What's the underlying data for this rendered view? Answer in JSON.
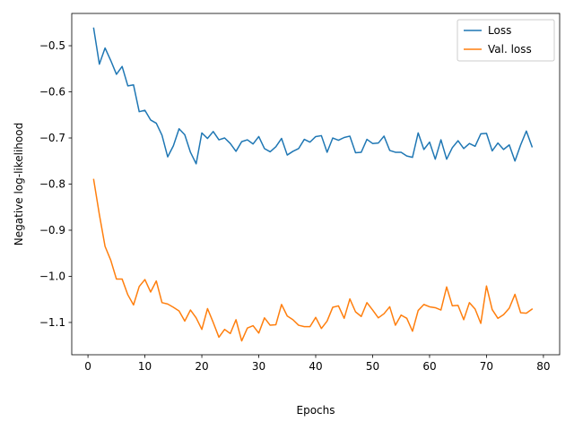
{
  "chart_data": {
    "type": "line",
    "title": "",
    "xlabel": "Epochs",
    "ylabel": "Negative log-likelihood",
    "xlim": [
      -2.85,
      82.85
    ],
    "ylim": [
      -1.17,
      -0.43
    ],
    "x_ticks": [
      0,
      10,
      20,
      30,
      40,
      50,
      60,
      70,
      80
    ],
    "x_tick_labels": [
      "0",
      "10",
      "20",
      "30",
      "40",
      "50",
      "60",
      "70",
      "80"
    ],
    "y_ticks": [
      -1.1,
      -1.0,
      -0.9,
      -0.8,
      -0.7,
      -0.6,
      -0.5
    ],
    "y_tick_labels": [
      "−1.1",
      "−1.0",
      "−0.9",
      "−0.8",
      "−0.7",
      "−0.6",
      "−0.5"
    ],
    "grid": false,
    "legend_position": "top-right",
    "x": [
      1,
      2,
      3,
      4,
      5,
      6,
      7,
      8,
      9,
      10,
      11,
      12,
      13,
      14,
      15,
      16,
      17,
      18,
      19,
      20,
      21,
      22,
      23,
      24,
      25,
      26,
      27,
      28,
      29,
      30,
      31,
      32,
      33,
      34,
      35,
      36,
      37,
      38,
      39,
      40,
      41,
      42,
      43,
      44,
      45,
      46,
      47,
      48,
      49,
      50,
      51,
      52,
      53,
      54,
      55,
      56,
      57,
      58,
      59,
      60,
      61,
      62,
      63,
      64,
      65,
      66,
      67,
      68,
      69,
      70,
      71,
      72,
      73,
      74,
      75,
      76,
      77,
      78
    ],
    "series": [
      {
        "name": "Loss",
        "color": "#1f77b4",
        "values": [
          -0.462,
          -0.54,
          -0.505,
          -0.532,
          -0.562,
          -0.545,
          -0.587,
          -0.585,
          -0.643,
          -0.64,
          -0.661,
          -0.668,
          -0.694,
          -0.741,
          -0.717,
          -0.68,
          -0.693,
          -0.731,
          -0.756,
          -0.689,
          -0.701,
          -0.686,
          -0.704,
          -0.7,
          -0.712,
          -0.729,
          -0.708,
          -0.704,
          -0.713,
          -0.697,
          -0.723,
          -0.73,
          -0.719,
          -0.701,
          -0.737,
          -0.729,
          -0.723,
          -0.703,
          -0.709,
          -0.697,
          -0.695,
          -0.731,
          -0.7,
          -0.705,
          -0.699,
          -0.696,
          -0.732,
          -0.731,
          -0.703,
          -0.712,
          -0.711,
          -0.696,
          -0.727,
          -0.731,
          -0.731,
          -0.739,
          -0.742,
          -0.689,
          -0.725,
          -0.709,
          -0.746,
          -0.704,
          -0.746,
          -0.721,
          -0.706,
          -0.723,
          -0.712,
          -0.718,
          -0.691,
          -0.69,
          -0.728,
          -0.711,
          -0.725,
          -0.715,
          -0.75,
          -0.715,
          -0.685,
          -0.719
        ]
      },
      {
        "name": "Val. loss",
        "color": "#ff7f0e",
        "values": [
          -0.79,
          -0.866,
          -0.935,
          -0.965,
          -1.006,
          -1.006,
          -1.04,
          -1.062,
          -1.022,
          -1.007,
          -1.034,
          -1.01,
          -1.057,
          -1.06,
          -1.067,
          -1.075,
          -1.097,
          -1.073,
          -1.09,
          -1.115,
          -1.07,
          -1.1,
          -1.132,
          -1.115,
          -1.124,
          -1.094,
          -1.14,
          -1.112,
          -1.107,
          -1.123,
          -1.09,
          -1.106,
          -1.105,
          -1.061,
          -1.086,
          -1.094,
          -1.106,
          -1.109,
          -1.109,
          -1.089,
          -1.113,
          -1.097,
          -1.067,
          -1.064,
          -1.091,
          -1.049,
          -1.077,
          -1.087,
          -1.057,
          -1.073,
          -1.09,
          -1.081,
          -1.066,
          -1.106,
          -1.084,
          -1.091,
          -1.119,
          -1.074,
          -1.061,
          -1.066,
          -1.068,
          -1.073,
          -1.023,
          -1.064,
          -1.063,
          -1.094,
          -1.057,
          -1.071,
          -1.102,
          -1.021,
          -1.072,
          -1.091,
          -1.083,
          -1.069,
          -1.039,
          -1.079,
          -1.08,
          -1.071
        ]
      }
    ]
  }
}
